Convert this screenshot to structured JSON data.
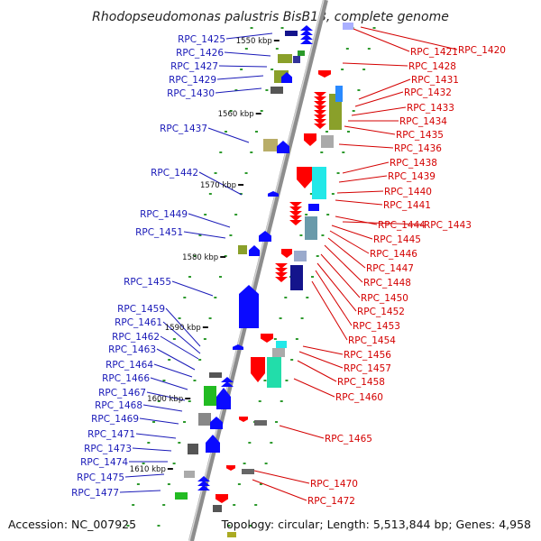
{
  "title": "Rhodopseudomonas palustris BisB18, complete genome",
  "footer": {
    "accession": "Accession: NC_007925",
    "summary": "Topology: circular; Length: 5,513,844 bp; Genes: 4,958"
  },
  "colors": {
    "left_label": "#1a1ab8",
    "right_label": "#d40000",
    "backbone": "#888888",
    "dot": "#2e9a2e"
  },
  "kbp_markers": [
    "1550 kbp",
    "1560 kbp",
    "1570 kbp",
    "1580 kbp",
    "1590 kbp",
    "1600 kbp",
    "1610 kbp"
  ],
  "left_labels": [
    "RPC_1425",
    "RPC_1426",
    "RPC_1427",
    "RPC_1429",
    "RPC_1430",
    "RPC_1437",
    "RPC_1442",
    "RPC_1449",
    "RPC_1451",
    "RPC_1455",
    "RPC_1459",
    "RPC_1461",
    "RPC_1462",
    "RPC_1463",
    "RPC_1464",
    "RPC_1466",
    "RPC_1467",
    "RPC_1468",
    "RPC_1469",
    "RPC_1471",
    "RPC_1473",
    "RPC_1474",
    "RPC_1475",
    "RPC_1477"
  ],
  "right_labels": [
    "RPC_1421",
    "RPC_1420",
    "RPC_1428",
    "RPC_1431",
    "RPC_1432",
    "RPC_1433",
    "RPC_1434",
    "RPC_1435",
    "RPC_1436",
    "RPC_1438",
    "RPC_1439",
    "RPC_1440",
    "RPC_1441",
    "RPC_1444",
    "RPC_1443",
    "RPC_1445",
    "RPC_1446",
    "RPC_1447",
    "RPC_1448",
    "RPC_1450",
    "RPC_1452",
    "RPC_1453",
    "RPC_1454",
    "RPC_1456",
    "RPC_1457",
    "RPC_1458",
    "RPC_1460",
    "RPC_1465",
    "RPC_1470",
    "RPC_1472"
  ]
}
